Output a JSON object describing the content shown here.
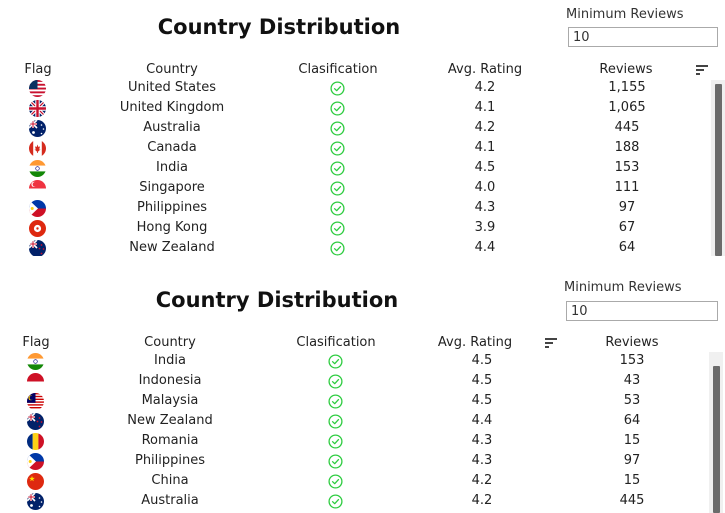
{
  "panel1": {
    "title": "Country Distribution",
    "min_reviews_label": "Minimum Reviews",
    "min_reviews_value": "10",
    "columns": {
      "flag": "Flag",
      "country": "Country",
      "classification": "Clasification",
      "rating": "Avg. Rating",
      "reviews": "Reviews"
    },
    "sort_icon": "sort-lines-icon",
    "rows": [
      {
        "flag": "us",
        "country": "United States",
        "rating": "4.2",
        "reviews": "1,155"
      },
      {
        "flag": "uk",
        "country": "United Kingdom",
        "rating": "4.1",
        "reviews": "1,065"
      },
      {
        "flag": "au",
        "country": "Australia",
        "rating": "4.2",
        "reviews": "445"
      },
      {
        "flag": "ca",
        "country": "Canada",
        "rating": "4.1",
        "reviews": "188"
      },
      {
        "flag": "in",
        "country": "India",
        "rating": "4.5",
        "reviews": "153"
      },
      {
        "flag": "sg",
        "country": "Singapore",
        "rating": "4.0",
        "reviews": "111"
      },
      {
        "flag": "ph",
        "country": "Philippines",
        "rating": "4.3",
        "reviews": "97"
      },
      {
        "flag": "hk",
        "country": "Hong Kong",
        "rating": "3.9",
        "reviews": "67"
      },
      {
        "flag": "nz",
        "country": "New Zealand",
        "rating": "4.4",
        "reviews": "64"
      }
    ]
  },
  "panel2": {
    "title": "Country Distribution",
    "min_reviews_label": "Minimum Reviews",
    "min_reviews_value": "10",
    "columns": {
      "flag": "Flag",
      "country": "Country",
      "classification": "Clasification",
      "rating": "Avg. Rating",
      "reviews": "Reviews"
    },
    "sort_icon": "sort-lines-icon",
    "rows": [
      {
        "flag": "in",
        "country": "India",
        "rating": "4.5",
        "reviews": "153"
      },
      {
        "flag": "id",
        "country": "Indonesia",
        "rating": "4.5",
        "reviews": "43"
      },
      {
        "flag": "my",
        "country": "Malaysia",
        "rating": "4.5",
        "reviews": "53"
      },
      {
        "flag": "nz",
        "country": "New Zealand",
        "rating": "4.4",
        "reviews": "64"
      },
      {
        "flag": "ro",
        "country": "Romania",
        "rating": "4.3",
        "reviews": "15"
      },
      {
        "flag": "ph",
        "country": "Philippines",
        "rating": "4.3",
        "reviews": "97"
      },
      {
        "flag": "cn",
        "country": "China",
        "rating": "4.2",
        "reviews": "15"
      },
      {
        "flag": "au",
        "country": "Australia",
        "rating": "4.2",
        "reviews": "445"
      }
    ]
  },
  "icons": {
    "classification": "check-circle-icon"
  },
  "colors": {
    "check_green": "#2ecc40",
    "scroll_thumb": "#6b6b6b",
    "text": "#222222"
  }
}
